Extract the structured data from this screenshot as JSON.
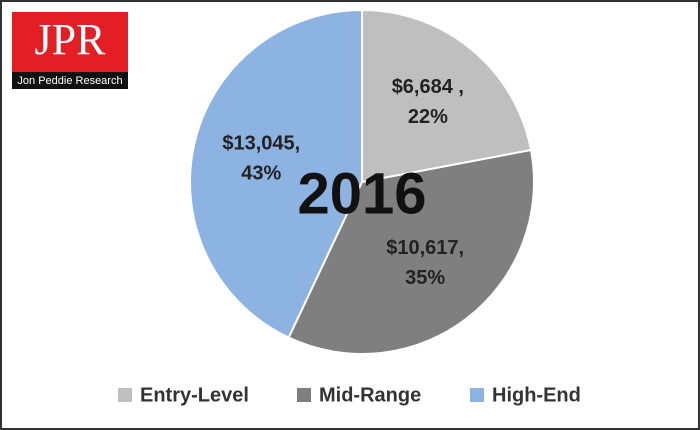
{
  "logo": {
    "title": "JPR",
    "subtitle": "Jon Peddie Research"
  },
  "chart_data": {
    "type": "pie",
    "annotation": "2016",
    "categories": [
      "Entry-Level",
      "Mid-Range",
      "High-End"
    ],
    "values": [
      6684,
      10617,
      13045
    ],
    "value_labels": [
      "$6,684 ,",
      "$10,617,",
      "$13,045,"
    ],
    "percents": [
      22,
      35,
      43
    ],
    "percent_labels": [
      "22%",
      "35%",
      "43%"
    ],
    "colors": [
      "#bfbfbf",
      "#7f7f7f",
      "#8db3e2"
    ],
    "legend": "bottom"
  }
}
